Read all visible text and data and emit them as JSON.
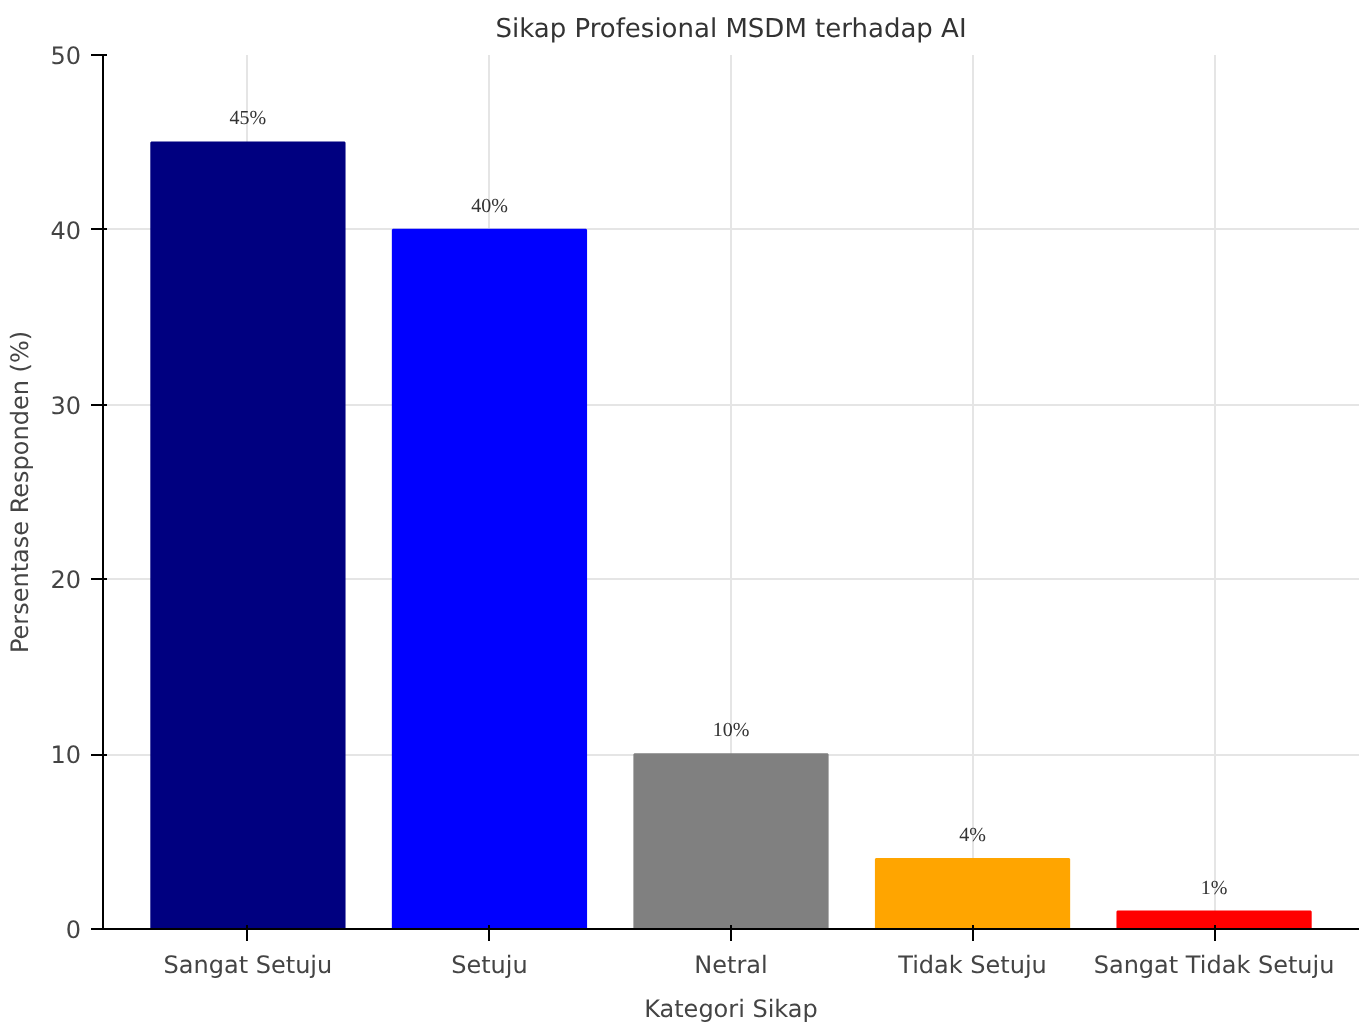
{
  "chart_data": {
    "type": "bar",
    "title": "Sikap Profesional MSDM terhadap AI",
    "xlabel": "Kategori Sikap",
    "ylabel": "Persentase Responden (%)",
    "categories": [
      "Sangat Setuju",
      "Setuju",
      "Netral",
      "Tidak Setuju",
      "Sangat Tidak Setuju"
    ],
    "values": [
      45,
      40,
      10,
      4,
      1
    ],
    "colors": [
      "#000080",
      "#0000ff",
      "#808080",
      "#ffa500",
      "#ff0000"
    ],
    "value_labels": [
      "45%",
      "40%",
      "10%",
      "4%",
      "1%"
    ],
    "ylim": [
      0,
      50
    ],
    "yticks": [
      0,
      10,
      20,
      30,
      40,
      50
    ],
    "grid": true
  }
}
